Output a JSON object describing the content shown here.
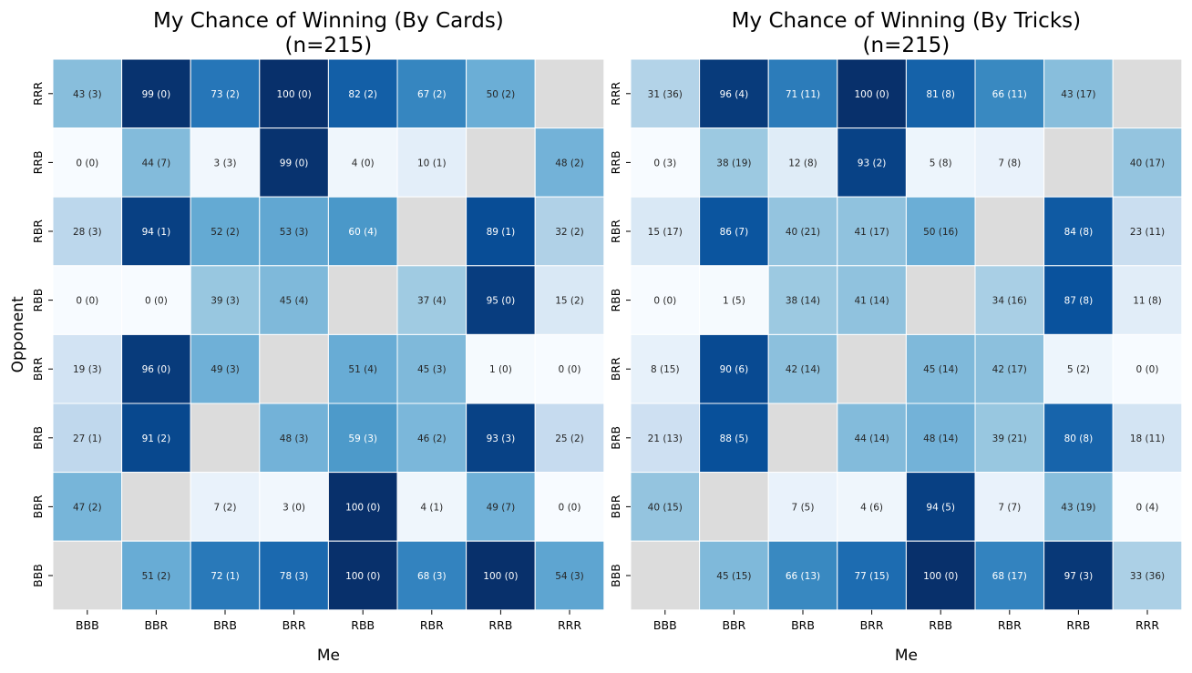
{
  "chart_data": [
    {
      "type": "heatmap",
      "title_line1": "My Chance of Winning (By Cards)",
      "title_line2": "(n=215)",
      "xlabel": "Me",
      "ylabel": "Opponent",
      "x_categories": [
        "BBB",
        "BBR",
        "BRB",
        "BRR",
        "RBB",
        "RBR",
        "RRB",
        "RRR"
      ],
      "y_categories": [
        "RRR",
        "RRB",
        "RBR",
        "RBB",
        "BRR",
        "BRB",
        "BBR",
        "BBB"
      ],
      "colormap": "Blues",
      "missing_color": "#dcdcdc",
      "values": [
        [
          43,
          99,
          73,
          100,
          82,
          67,
          50,
          null
        ],
        [
          0,
          44,
          3,
          99,
          4,
          10,
          null,
          48
        ],
        [
          28,
          94,
          52,
          53,
          60,
          null,
          89,
          32
        ],
        [
          0,
          0,
          39,
          45,
          null,
          37,
          95,
          15
        ],
        [
          19,
          96,
          49,
          null,
          51,
          45,
          1,
          0
        ],
        [
          27,
          91,
          null,
          48,
          59,
          46,
          93,
          25
        ],
        [
          47,
          null,
          7,
          3,
          100,
          4,
          49,
          0
        ],
        [
          null,
          51,
          72,
          78,
          100,
          68,
          100,
          54
        ]
      ],
      "annotations": [
        [
          "43 (3)",
          "99 (0)",
          "73 (2)",
          "100 (0)",
          "82 (2)",
          "67 (2)",
          "50 (2)",
          ""
        ],
        [
          "0 (0)",
          "44 (7)",
          "3 (3)",
          "99 (0)",
          "4 (0)",
          "10 (1)",
          "",
          "48 (2)"
        ],
        [
          "28 (3)",
          "94 (1)",
          "52 (2)",
          "53 (3)",
          "60 (4)",
          "",
          "89 (1)",
          "32 (2)"
        ],
        [
          "0 (0)",
          "0 (0)",
          "39 (3)",
          "45 (4)",
          "",
          "37 (4)",
          "95 (0)",
          "15 (2)"
        ],
        [
          "19 (3)",
          "96 (0)",
          "49 (3)",
          "",
          "51 (4)",
          "45 (3)",
          "1 (0)",
          "0 (0)"
        ],
        [
          "27 (1)",
          "91 (2)",
          "",
          "48 (3)",
          "59 (3)",
          "46 (2)",
          "93 (3)",
          "25 (2)"
        ],
        [
          "47 (2)",
          "",
          "7 (2)",
          "3 (0)",
          "100 (0)",
          "4 (1)",
          "49 (7)",
          "0 (0)"
        ],
        [
          "",
          "51 (2)",
          "72 (1)",
          "78 (3)",
          "100 (0)",
          "68 (3)",
          "100 (0)",
          "54 (3)"
        ]
      ]
    },
    {
      "type": "heatmap",
      "title_line1": "My Chance of Winning (By Tricks)",
      "title_line2": "(n=215)",
      "xlabel": "Me",
      "ylabel": "",
      "x_categories": [
        "BBB",
        "BBR",
        "BRB",
        "BRR",
        "RBB",
        "RBR",
        "RRB",
        "RRR"
      ],
      "y_categories": [
        "RRR",
        "RRB",
        "RBR",
        "RBB",
        "BRR",
        "BRB",
        "BBR",
        "BBB"
      ],
      "colormap": "Blues",
      "missing_color": "#dcdcdc",
      "values": [
        [
          31,
          96,
          71,
          100,
          81,
          66,
          43,
          null
        ],
        [
          0,
          38,
          12,
          93,
          5,
          7,
          null,
          40
        ],
        [
          15,
          86,
          40,
          41,
          50,
          null,
          84,
          23
        ],
        [
          0,
          1,
          38,
          41,
          null,
          34,
          87,
          11
        ],
        [
          8,
          90,
          42,
          null,
          45,
          42,
          5,
          0
        ],
        [
          21,
          88,
          null,
          44,
          48,
          39,
          80,
          18
        ],
        [
          40,
          null,
          7,
          4,
          94,
          7,
          43,
          0
        ],
        [
          null,
          45,
          66,
          77,
          100,
          68,
          97,
          33
        ]
      ],
      "annotations": [
        [
          "31 (36)",
          "96 (4)",
          "71 (11)",
          "100 (0)",
          "81 (8)",
          "66 (11)",
          "43 (17)",
          ""
        ],
        [
          "0 (3)",
          "38 (19)",
          "12 (8)",
          "93 (2)",
          "5 (8)",
          "7 (8)",
          "",
          "40 (17)"
        ],
        [
          "15 (17)",
          "86 (7)",
          "40 (21)",
          "41 (17)",
          "50 (16)",
          "",
          "84 (8)",
          "23 (11)"
        ],
        [
          "0 (0)",
          "1 (5)",
          "38 (14)",
          "41 (14)",
          "",
          "34 (16)",
          "87 (8)",
          "11 (8)"
        ],
        [
          "8 (15)",
          "90 (6)",
          "42 (14)",
          "",
          "45 (14)",
          "42 (17)",
          "5 (2)",
          "0 (0)"
        ],
        [
          "21 (13)",
          "88 (5)",
          "",
          "44 (14)",
          "48 (14)",
          "39 (21)",
          "80 (8)",
          "18 (11)"
        ],
        [
          "40 (15)",
          "",
          "7 (5)",
          "4 (6)",
          "94 (5)",
          "7 (7)",
          "43 (19)",
          "0 (4)"
        ],
        [
          "",
          "45 (15)",
          "66 (13)",
          "77 (15)",
          "100 (0)",
          "68 (17)",
          "97 (3)",
          "33 (36)"
        ]
      ]
    }
  ]
}
